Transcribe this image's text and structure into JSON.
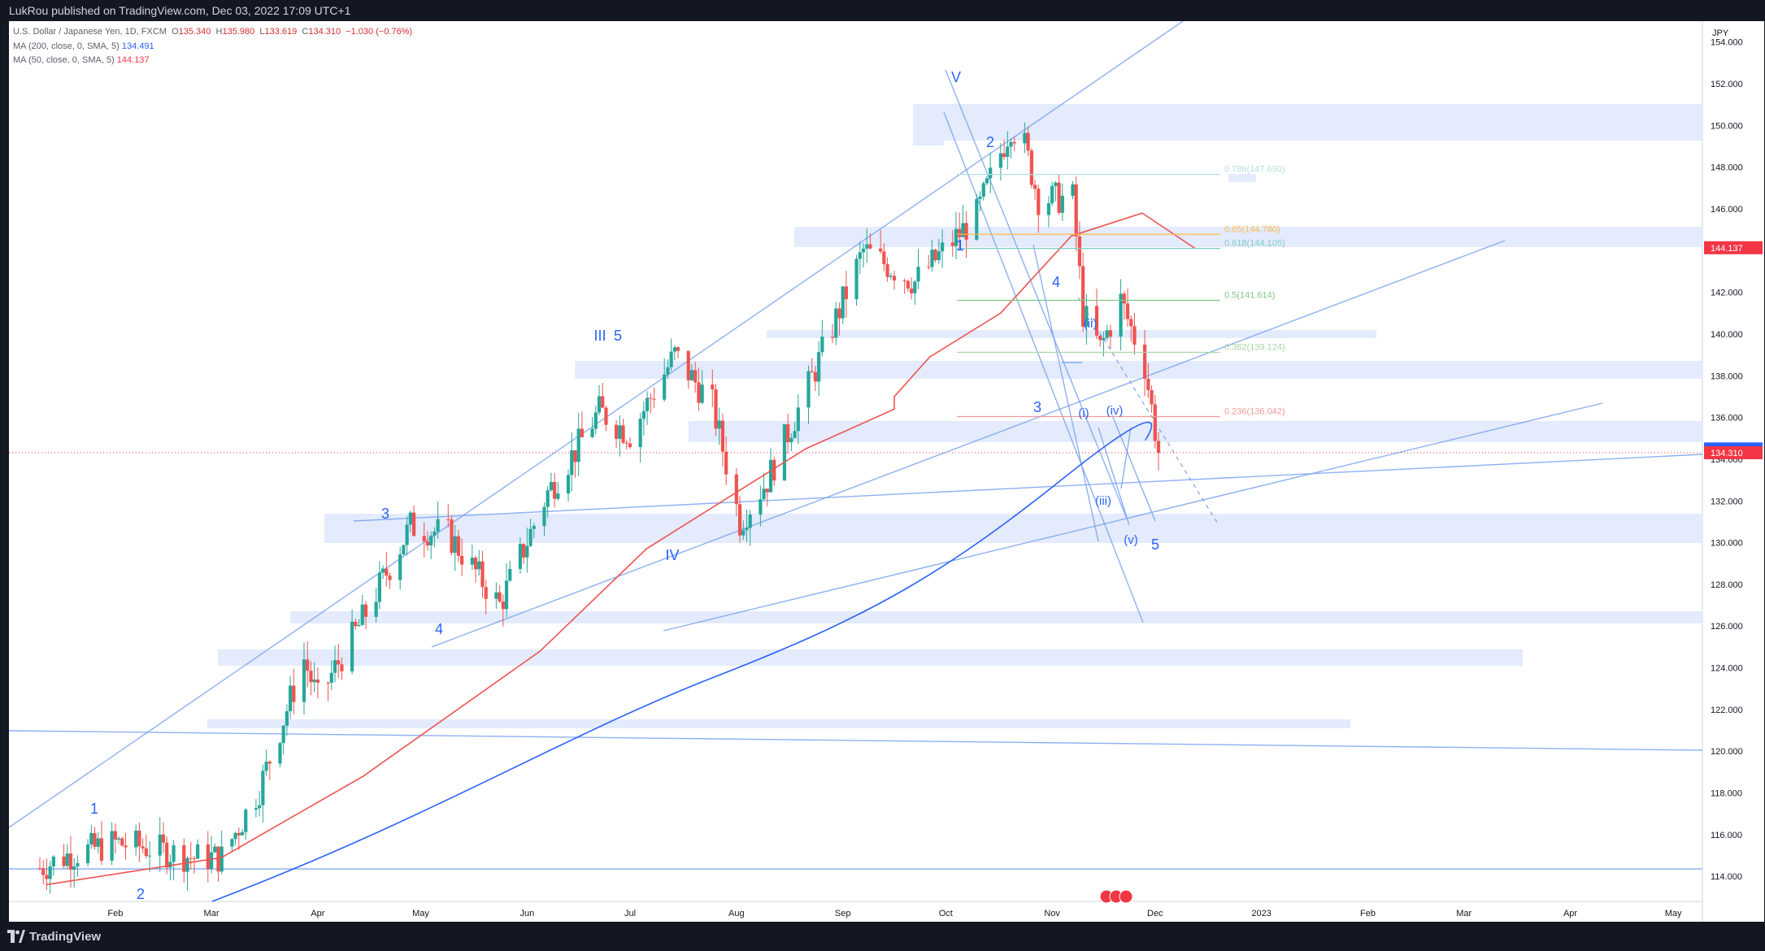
{
  "header": {
    "published_line": "LukRou published on TradingView.com, Dec 03, 2022 17:09 UTC+1"
  },
  "legend": {
    "line1_prefix": "U.S. Dollar / Japanese Yen, 1D, FXCM",
    "o_label": "O",
    "o_value": "135.340",
    "h_label": "H",
    "h_value": "135.980",
    "l_label": "L",
    "l_value": "133.619",
    "c_label": "C",
    "c_value": "134.310",
    "change": "−1.030 (−0.76%)",
    "ma200_label": "MA (200, close, 0, SMA, 5)",
    "ma200_value": "134.491",
    "ma50_label": "MA (50, close, 0, SMA, 5)",
    "ma50_value": "144.137"
  },
  "footer": {
    "brand": "TradingView"
  },
  "colors": {
    "background": "#ffffff",
    "up_candle": "#26a69a",
    "down_candle": "#ef5350",
    "ma50": "#ef5350",
    "ma200": "#2962ff",
    "trendline": "#7aa3f0",
    "zone": "#e3ebfc",
    "annotation": "#2962ff",
    "last_price_tag": "#f23645",
    "ma200_tag": "#2962ff"
  },
  "chart_data": {
    "type": "candlestick",
    "symbol": "U.S. Dollar / Japanese Yen",
    "unit": "JPY",
    "ylim": [
      112.8,
      155.0
    ],
    "y_ticks": [
      "114.000",
      "116.000",
      "118.000",
      "120.000",
      "122.000",
      "124.000",
      "126.000",
      "128.000",
      "130.000",
      "132.000",
      "134.000",
      "136.000",
      "138.000",
      "140.000",
      "142.000",
      "144.000",
      "146.000",
      "148.000",
      "150.000",
      "152.000",
      "154.000"
    ],
    "x_ticks": [
      "Feb",
      "Mar",
      "Apr",
      "May",
      "Jun",
      "Jul",
      "Aug",
      "Sep",
      "Oct",
      "Nov",
      "Dec",
      "2023",
      "Feb",
      "Mar",
      "Apr",
      "May"
    ],
    "price_tags": [
      {
        "label": "144.137",
        "value": 144.137,
        "color": "#f23645"
      },
      {
        "label": "134.491",
        "value": 134.491,
        "color": "#2962ff"
      },
      {
        "label": "134.310",
        "value": 134.31,
        "color": "#f23645"
      }
    ],
    "anchors": [
      {
        "date": "2022-01-10",
        "close": 114.4
      },
      {
        "date": "2022-01-18",
        "close": 115.0
      },
      {
        "date": "2022-02-01",
        "close": 115.6
      },
      {
        "date": "2022-02-10",
        "close": 115.4
      },
      {
        "date": "2022-02-24",
        "close": 114.9
      },
      {
        "date": "2022-03-04",
        "close": 114.9
      },
      {
        "date": "2022-03-15",
        "close": 118.2
      },
      {
        "date": "2022-03-28",
        "close": 124.4
      },
      {
        "date": "2022-04-01",
        "close": 122.5
      },
      {
        "date": "2022-04-14",
        "close": 126.3
      },
      {
        "date": "2022-04-28",
        "close": 130.8
      },
      {
        "date": "2022-05-09",
        "close": 130.4
      },
      {
        "date": "2022-05-24",
        "close": 127.0
      },
      {
        "date": "2022-06-07",
        "close": 132.4
      },
      {
        "date": "2022-06-15",
        "close": 134.4
      },
      {
        "date": "2022-06-22",
        "close": 136.3
      },
      {
        "date": "2022-07-01",
        "close": 135.2
      },
      {
        "date": "2022-07-14",
        "close": 139.0
      },
      {
        "date": "2022-07-25",
        "close": 136.6
      },
      {
        "date": "2022-08-02",
        "close": 131.0
      },
      {
        "date": "2022-08-10",
        "close": 133.0
      },
      {
        "date": "2022-08-22",
        "close": 137.5
      },
      {
        "date": "2022-09-07",
        "close": 144.0
      },
      {
        "date": "2022-09-22",
        "close": 142.5
      },
      {
        "date": "2022-10-10",
        "close": 145.7
      },
      {
        "date": "2022-10-20",
        "close": 150.0
      },
      {
        "date": "2022-10-24",
        "close": 149.0
      },
      {
        "date": "2022-10-28",
        "close": 146.5
      },
      {
        "date": "2022-11-07",
        "close": 146.5
      },
      {
        "date": "2022-11-10",
        "close": 141.0
      },
      {
        "date": "2022-11-15",
        "close": 139.3
      },
      {
        "date": "2022-11-21",
        "close": 141.6
      },
      {
        "date": "2022-11-28",
        "close": 138.5
      },
      {
        "date": "2022-12-01",
        "close": 135.4
      },
      {
        "date": "2022-12-02",
        "close": 134.3
      }
    ],
    "ma50": [
      [
        0.021,
        113.6
      ],
      [
        0.12,
        114.9
      ],
      [
        0.2,
        118.8
      ],
      [
        0.3,
        124.8
      ],
      [
        0.36,
        129.7
      ],
      [
        0.45,
        134.5
      ],
      [
        0.5,
        136.4
      ],
      [
        0.5,
        137.0
      ],
      [
        0.52,
        138.9
      ],
      [
        0.56,
        141.0
      ],
      [
        0.6,
        144.7
      ],
      [
        0.64,
        145.8
      ],
      [
        0.67,
        144.1
      ]
    ],
    "fibonacci": [
      {
        "label": "0.786(147.650)",
        "value": 147.65,
        "color": "#b2dfdb"
      },
      {
        "label": "0.65(144.780)",
        "value": 144.78,
        "color": "#ffb74d"
      },
      {
        "label": "0.618(144.105)",
        "value": 144.105,
        "color": "#80cbc4"
      },
      {
        "label": "0.5(141.614)",
        "value": 141.614,
        "color": "#81c784"
      },
      {
        "label": "0.382(139.124)",
        "value": 139.124,
        "color": "#a5d6a7"
      },
      {
        "label": "0.236(136.042)",
        "value": 136.042,
        "color": "#ef9a9a"
      }
    ],
    "wave_labels": [
      "1",
      "2",
      "3",
      "4",
      "III",
      "5",
      "IV",
      "V",
      "1",
      "2",
      "3",
      "4",
      "(i)",
      "(ii)",
      "(iii)",
      "(iv)",
      "(v)",
      "5"
    ]
  }
}
